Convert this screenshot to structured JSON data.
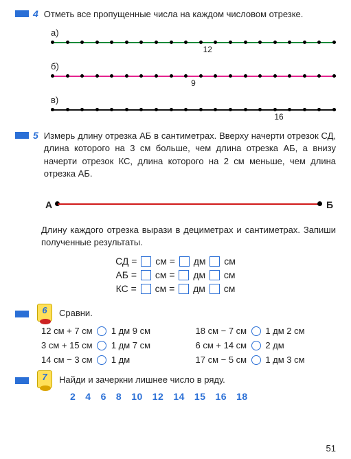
{
  "colors": {
    "accent": "#2a6fd6",
    "line_a": "#1a8a3a",
    "line_b": "#e4228e",
    "line_c": "#111",
    "segment": "#d01818"
  },
  "ex4": {
    "num": "4",
    "text": "Отметь все пропущенные числа на каждом числовом отрезке.",
    "lines": {
      "a": {
        "label": "а)",
        "ticks": 20,
        "shown_value": "12",
        "shown_pos_pct": 55,
        "color": "#1a8a3a"
      },
      "b": {
        "label": "б)",
        "ticks": 20,
        "shown_value": "9",
        "shown_pos_pct": 50,
        "color": "#e4228e"
      },
      "c": {
        "label": "в)",
        "ticks": 20,
        "shown_value": "16",
        "shown_pos_pct": 80,
        "color": "#111"
      }
    }
  },
  "ex5": {
    "num": "5",
    "text": "Измерь длину отрезка АБ в сантиметрах. Вверху начерти отрезок СД, длина которого на 3 см больше, чем длина отрезка АБ, а внизу начерти отрезок КС, длина которого на 2 см меньше, чем длина отрезка АБ.",
    "seg": {
      "left": "А",
      "right": "Б",
      "color": "#d01818"
    },
    "para": "Длину каждого отрезка вырази в дециметрах и сантиметрах. Запиши полученные результаты.",
    "rows": [
      {
        "name": "СД",
        "u1": "см",
        "u2": "дм",
        "u3": "см"
      },
      {
        "name": "АБ",
        "u1": "см",
        "u2": "дм",
        "u3": "см"
      },
      {
        "name": "КС",
        "u1": "см",
        "u2": "дм",
        "u3": "см"
      }
    ]
  },
  "ex6": {
    "num": "6",
    "title": "Сравни.",
    "items": [
      {
        "l": "12 см + 7 см",
        "r": "1 дм 9 см"
      },
      {
        "l": "18 см − 7 см",
        "r": "1 дм 2 см"
      },
      {
        "l": "3 см + 15 см",
        "r": "1 дм 7 см"
      },
      {
        "l": "6 см + 14 см",
        "r": "2 дм"
      },
      {
        "l": "14 см − 3 см",
        "r": "1 дм"
      },
      {
        "l": "17 см − 5 см",
        "r": "1 дм 3 см"
      }
    ]
  },
  "ex7": {
    "num": "7",
    "text": "Найди и зачеркни лишнее число в ряду.",
    "numbers": [
      "2",
      "4",
      "6",
      "8",
      "10",
      "12",
      "14",
      "15",
      "16",
      "18"
    ]
  },
  "page": "51"
}
